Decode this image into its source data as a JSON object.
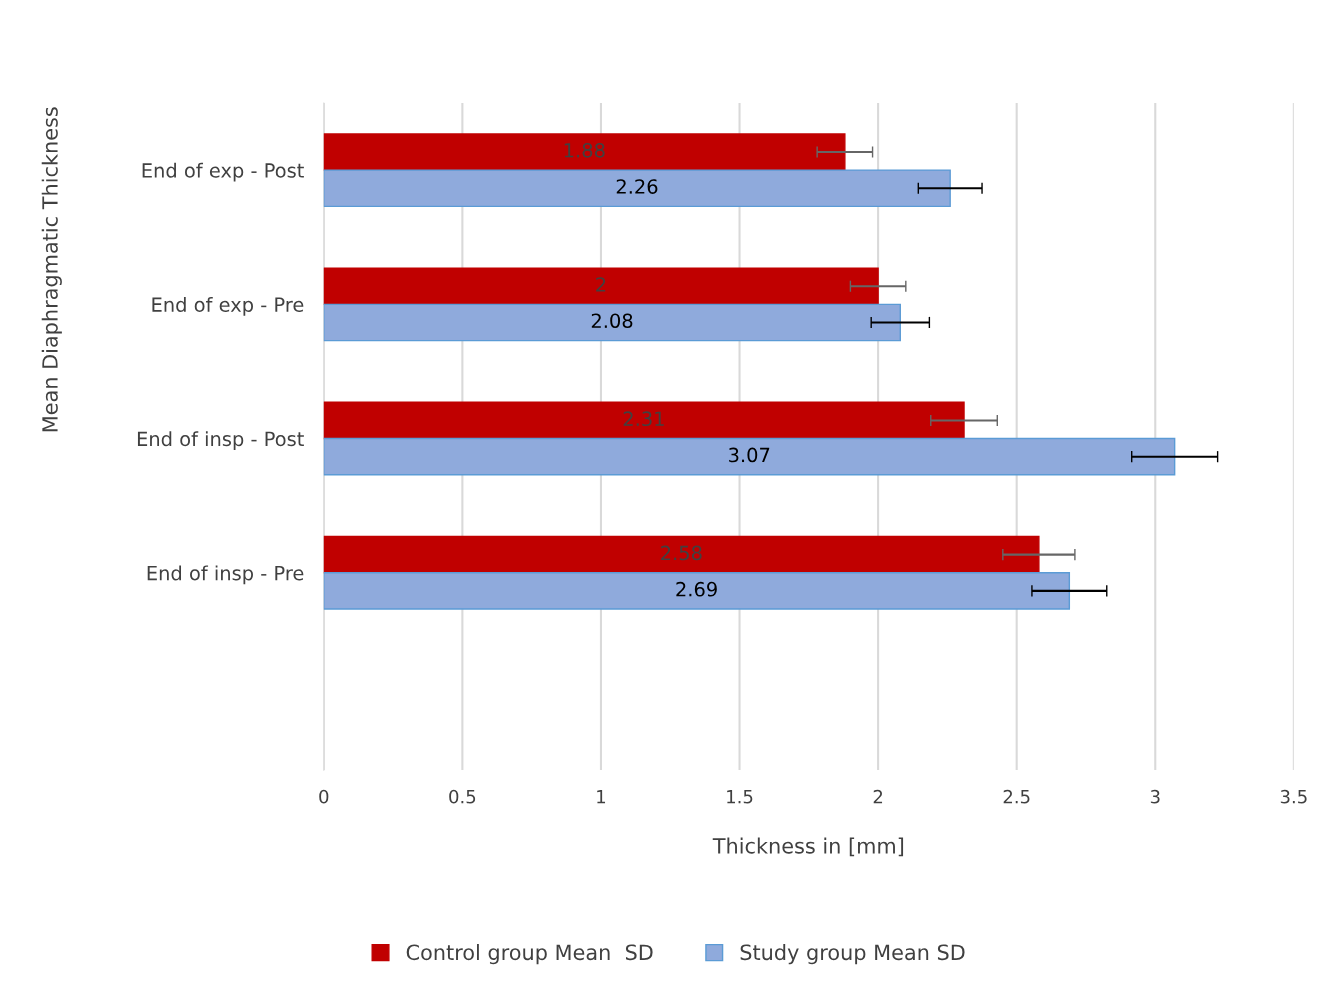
{
  "chart_data": {
    "type": "bar",
    "orientation": "horizontal",
    "categories": [
      "End of exp - Post",
      "End of exp - Pre",
      "End of insp - Post",
      "End of insp - Pre"
    ],
    "series": [
      {
        "name": "Control group Mean  SD",
        "color": "#c00000",
        "values": [
          1.88,
          2,
          2.31,
          2.58
        ],
        "errors": [
          0.1,
          0.1,
          0.12,
          0.13
        ]
      },
      {
        "name": "Study group Mean SD",
        "color": "#8faadc",
        "values": [
          2.26,
          2.08,
          3.07,
          2.69
        ],
        "errors": [
          0.115,
          0.105,
          0.155,
          0.135
        ]
      }
    ],
    "xlabel": "Thickness in [mm]",
    "ylabel": "Mean Diaphragmatic Thickness",
    "xlim": [
      0,
      3.5
    ],
    "xticks": [
      0,
      0.5,
      1,
      1.5,
      2,
      2.5,
      3,
      3.5
    ],
    "grid": "x",
    "legend": "bottom",
    "data_labels": true
  }
}
